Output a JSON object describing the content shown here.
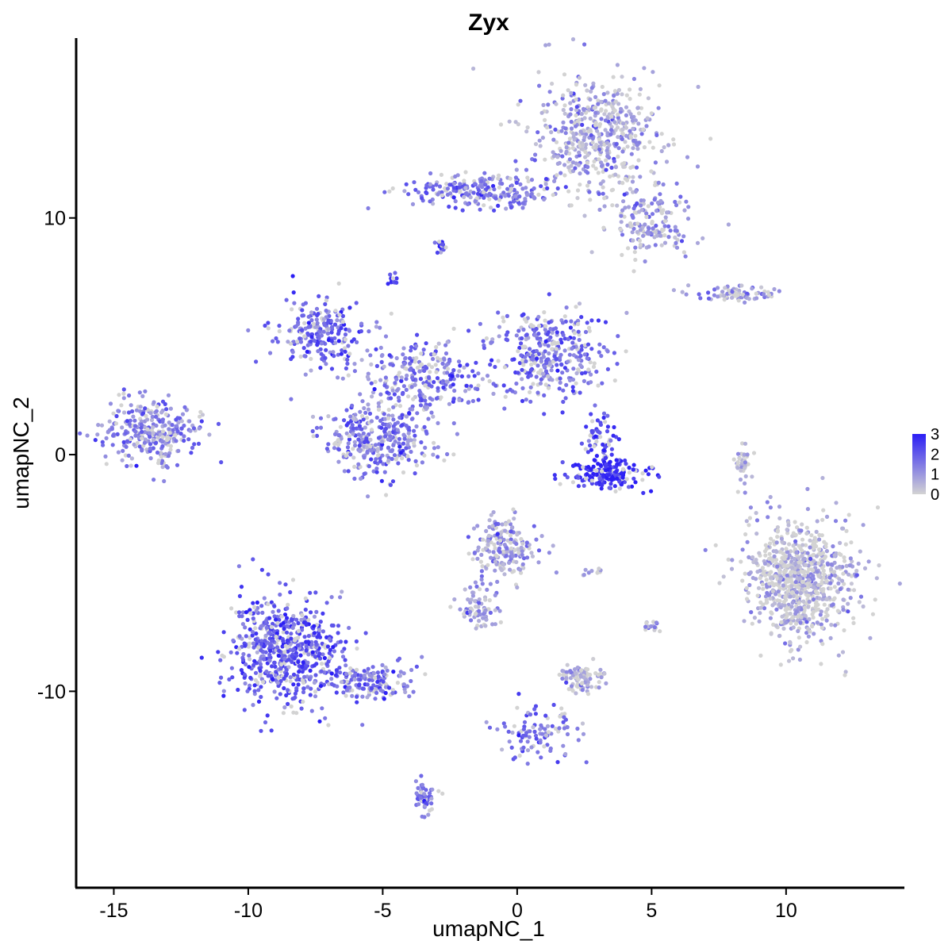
{
  "chart_data": {
    "type": "scatter",
    "title": "Zyx",
    "xlabel": "umapNC_1",
    "ylabel": "umapNC_2",
    "xlim": [
      -16.4,
      14.4
    ],
    "ylim": [
      -18.3,
      17.6
    ],
    "x_ticks": [
      -15,
      -10,
      -5,
      0,
      5,
      10
    ],
    "x_tick_labels": [
      "-15",
      "-10",
      "-5",
      "0",
      "5",
      "10"
    ],
    "y_ticks": [
      -10,
      0,
      10
    ],
    "y_tick_labels": [
      "-10",
      "0",
      "10"
    ],
    "grid": false,
    "legend": {
      "position": "right",
      "kind": "colorbar",
      "min": 0,
      "max": 3,
      "labels": [
        "3",
        "2",
        "1",
        "0"
      ],
      "label_values": [
        3,
        2,
        1,
        0
      ]
    },
    "colors": {
      "low": "#d3d3d3",
      "high": "#2b1ef5"
    },
    "clusters": [
      {
        "name": "top-right",
        "cx": 3.0,
        "cy": 13.5,
        "sx": 1.6,
        "sy": 1.7,
        "n": 500,
        "expr": 0.8
      },
      {
        "name": "top-arm",
        "cx": -1.2,
        "cy": 11.2,
        "sx": 1.8,
        "sy": 0.5,
        "n": 230,
        "expr": 1.6
      },
      {
        "name": "top-right-lobe",
        "cx": 5.0,
        "cy": 9.8,
        "sx": 1.0,
        "sy": 0.9,
        "n": 170,
        "expr": 1.1
      },
      {
        "name": "left",
        "cx": -13.6,
        "cy": 0.9,
        "sx": 1.2,
        "sy": 0.9,
        "n": 300,
        "expr": 1.4
      },
      {
        "name": "center-upper-left",
        "cx": -7.3,
        "cy": 5.1,
        "sx": 1.2,
        "sy": 0.9,
        "n": 230,
        "expr": 1.8
      },
      {
        "name": "center-right-lobe",
        "cx": 1.2,
        "cy": 4.2,
        "sx": 1.6,
        "sy": 1.2,
        "n": 360,
        "expr": 1.7
      },
      {
        "name": "center-lower-left",
        "cx": -5.2,
        "cy": 0.6,
        "sx": 1.3,
        "sy": 1.0,
        "n": 330,
        "expr": 1.5
      },
      {
        "name": "center-mid",
        "cx": -3.4,
        "cy": 3.2,
        "sx": 1.4,
        "sy": 1.0,
        "n": 250,
        "expr": 1.5
      },
      {
        "name": "bright-crescent",
        "cx": 3.4,
        "cy": -0.8,
        "sx": 0.9,
        "sy": 0.4,
        "n": 180,
        "expr": 2.7
      },
      {
        "name": "crescent-upper",
        "cx": 3.1,
        "cy": 0.6,
        "sx": 0.35,
        "sy": 0.6,
        "n": 60,
        "expr": 2.2
      },
      {
        "name": "right-blob",
        "cx": 10.6,
        "cy": -5.2,
        "sx": 1.4,
        "sy": 1.7,
        "n": 820,
        "expr": 0.45
      },
      {
        "name": "bottom-left",
        "cx": -8.6,
        "cy": -8.2,
        "sx": 1.4,
        "sy": 1.5,
        "n": 620,
        "expr": 2.0
      },
      {
        "name": "bottom-left-tail",
        "cx": -5.5,
        "cy": -9.6,
        "sx": 1.1,
        "sy": 0.5,
        "n": 150,
        "expr": 1.6
      },
      {
        "name": "middle-lower",
        "cx": -0.5,
        "cy": -3.9,
        "sx": 0.8,
        "sy": 0.9,
        "n": 190,
        "expr": 1.0
      },
      {
        "name": "middle-lower-arm",
        "cx": -1.5,
        "cy": -6.5,
        "sx": 0.6,
        "sy": 0.6,
        "n": 70,
        "expr": 0.9
      },
      {
        "name": "small-bottom-mid",
        "cx": 2.4,
        "cy": -9.4,
        "sx": 0.6,
        "sy": 0.4,
        "n": 90,
        "expr": 0.6
      },
      {
        "name": "bottom-branch",
        "cx": 0.8,
        "cy": -11.8,
        "sx": 1.0,
        "sy": 0.7,
        "n": 100,
        "expr": 1.5
      },
      {
        "name": "bottom-small",
        "cx": -3.5,
        "cy": -14.5,
        "sx": 0.25,
        "sy": 0.5,
        "n": 60,
        "expr": 1.6
      },
      {
        "name": "right-strip",
        "cx": 8.2,
        "cy": 6.8,
        "sx": 1.0,
        "sy": 0.2,
        "n": 80,
        "expr": 0.9
      },
      {
        "name": "right-thin",
        "cx": 8.4,
        "cy": -0.3,
        "sx": 0.2,
        "sy": 0.6,
        "n": 40,
        "expr": 0.4
      },
      {
        "name": "small-8",
        "cx": -2.9,
        "cy": 8.8,
        "sx": 0.2,
        "sy": 0.2,
        "n": 15,
        "expr": 2.0
      },
      {
        "name": "small-7",
        "cx": -4.6,
        "cy": 7.4,
        "sx": 0.15,
        "sy": 0.15,
        "n": 12,
        "expr": 2.2
      },
      {
        "name": "small-right",
        "cx": 5.0,
        "cy": -7.3,
        "sx": 0.2,
        "sy": 0.2,
        "n": 15,
        "expr": 0.7
      },
      {
        "name": "small-mid",
        "cx": 2.9,
        "cy": -5.0,
        "sx": 0.3,
        "sy": 0.1,
        "n": 10,
        "expr": 0.9
      }
    ]
  }
}
